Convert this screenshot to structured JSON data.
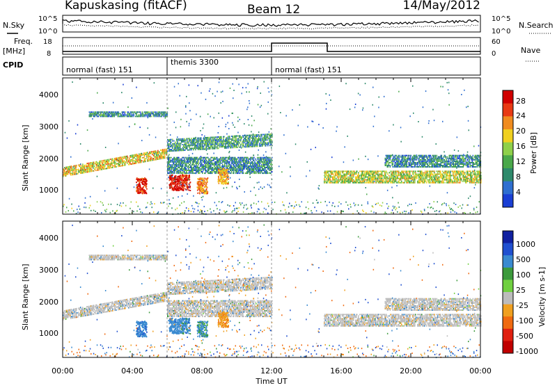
{
  "header": {
    "station": "Kapuskasing (fitACF)",
    "beam": "Beam 12",
    "date": "14/May/2012"
  },
  "noise_panel": {
    "left_label": "N.Sky",
    "right_label": "N.Search",
    "left_ticks": [
      "10^5",
      "10^0"
    ],
    "right_ticks": [
      "10^5",
      "10^0"
    ]
  },
  "freq_panel": {
    "left_label_line1": "Freq.",
    "left_label_line2": "[MHz]",
    "left_ticks": [
      "18",
      "8"
    ],
    "right_ticks": [
      "60",
      "0"
    ],
    "right_label": "Nave"
  },
  "cpid": {
    "label": "CPID",
    "segments": [
      {
        "start": "00:00",
        "end": "06:00",
        "text": "normal (fast) 151"
      },
      {
        "start": "06:00",
        "end": "12:00",
        "text": "themis 3300"
      },
      {
        "start": "12:00",
        "end": "24:00",
        "text": "normal (fast) 151"
      }
    ]
  },
  "time_axis": {
    "label": "Time UT",
    "ticks": [
      "00:00",
      "04:00",
      "08:00",
      "12:00",
      "16:00",
      "20:00",
      "00:00"
    ]
  },
  "power_panel": {
    "ylabel": "Slant Range [km]",
    "yticks": [
      "4000",
      "3000",
      "2000",
      "1000"
    ],
    "colorbar_label": "Power [dB]",
    "colorbar_ticks": [
      "28",
      "24",
      "20",
      "16",
      "12",
      "8",
      "4"
    ]
  },
  "velocity_panel": {
    "ylabel": "Slant Range [km]",
    "yticks": [
      "4000",
      "3000",
      "2000",
      "1000"
    ],
    "colorbar_label": "Velocity [m s-1]",
    "colorbar_ticks": [
      "1000",
      "500",
      "100",
      "25",
      "-25",
      "-100",
      "-500",
      "-1000"
    ]
  },
  "chart_data": {
    "type": "heatmap",
    "x_range": [
      "00:00",
      "24:00"
    ],
    "y_range": [
      180,
      4500
    ],
    "power_colors": [
      "#1a3fd4",
      "#2f6fd0",
      "#2e8a6b",
      "#4aa84a",
      "#8fd04a",
      "#f0d020",
      "#f08c20",
      "#e83a14",
      "#d00000"
    ],
    "velocity_colors": [
      "#1020a0",
      "#2050d0",
      "#3a8ad0",
      "#3c9a3c",
      "#70d040",
      "#bcbcbc",
      "#f0a020",
      "#f06a10",
      "#e02010",
      "#c00000"
    ],
    "ground_color": "#bcbcbc",
    "bands": [
      {
        "t_start": 0.0,
        "t_end": 6.0,
        "range_start": 1400,
        "range_end": 1700,
        "slope_km_per_hr": 100,
        "power_db": 18
      },
      {
        "t_start": 1.5,
        "t_end": 6.0,
        "range_start": 3300,
        "range_end": 3450,
        "slope_km_per_hr": 0,
        "power_db": 8
      },
      {
        "t_start": 6.0,
        "t_end": 12.0,
        "range_start": 2200,
        "range_end": 2600,
        "slope_km_per_hr": 30,
        "power_db": 10
      },
      {
        "t_start": 6.0,
        "t_end": 12.0,
        "range_start": 1500,
        "range_end": 2000,
        "slope_km_per_hr": 0,
        "power_db": 8
      },
      {
        "t_start": 15.0,
        "t_end": 24.0,
        "range_start": 1200,
        "range_end": 1600,
        "slope_km_per_hr": 0,
        "power_db": 16
      },
      {
        "t_start": 18.5,
        "t_end": 24.0,
        "range_start": 1700,
        "range_end": 2100,
        "slope_km_per_hr": 0,
        "power_db": 8
      }
    ],
    "patches": [
      {
        "t_center": 4.5,
        "range_center": 1100,
        "power_db": 26,
        "velocity": 400
      },
      {
        "t_center": 6.4,
        "range_center": 1200,
        "power_db": 28,
        "velocity": 300
      },
      {
        "t_center": 7.0,
        "range_center": 1200,
        "power_db": 26,
        "velocity": 200
      },
      {
        "t_center": 8.0,
        "range_center": 1100,
        "power_db": 22,
        "velocity": 150
      },
      {
        "t_center": 9.2,
        "range_center": 1400,
        "power_db": 20,
        "velocity": -400
      }
    ]
  }
}
